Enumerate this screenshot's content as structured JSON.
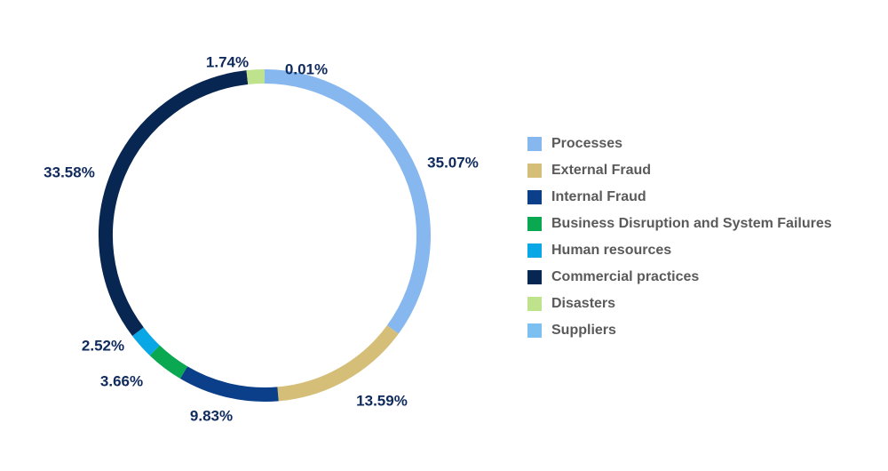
{
  "chart_data": {
    "type": "pie",
    "subtype": "donut",
    "title": "",
    "legend_position": "right",
    "slices": [
      {
        "label": "Processes",
        "value": 35.07,
        "value_label": "35.07%",
        "color": "#86b7ef"
      },
      {
        "label": "External Fraud",
        "value": 13.59,
        "value_label": "13.59%",
        "color": "#d5be78"
      },
      {
        "label": "Internal Fraud",
        "value": 9.83,
        "value_label": "9.83%",
        "color": "#0b3f8a"
      },
      {
        "label": "Business Disruption and System Failures",
        "value": 3.66,
        "value_label": "3.66%",
        "color": "#0aa850"
      },
      {
        "label": "Human resources",
        "value": 2.52,
        "value_label": "2.52%",
        "color": "#0aa7e6"
      },
      {
        "label": "Commercial practices",
        "value": 33.58,
        "value_label": "33.58%",
        "color": "#072651"
      },
      {
        "label": "Disasters",
        "value": 1.74,
        "value_label": "1.74%",
        "color": "#bfe38c"
      },
      {
        "label": "Suppliers",
        "value": 0.01,
        "value_label": "0.01%",
        "color": "#7cc0f2"
      }
    ]
  }
}
